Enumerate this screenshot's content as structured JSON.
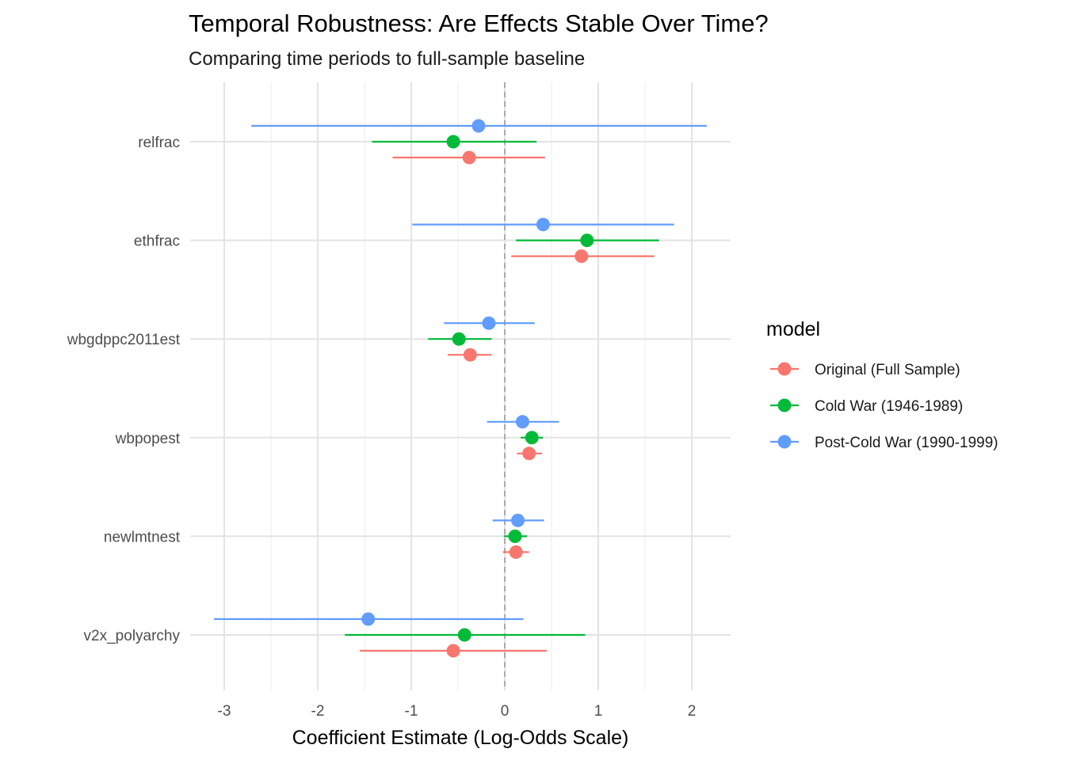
{
  "chart_data": {
    "type": "scatter",
    "title": "Temporal Robustness: Are Effects Stable Over Time?",
    "subtitle": "Comparing time periods to full-sample baseline",
    "xlabel": "Coefficient Estimate (Log-Odds Scale)",
    "ylabel": "",
    "xlim": [
      -3.3,
      2.4
    ],
    "xticks": [
      -3,
      -2,
      -1,
      0,
      1,
      2
    ],
    "reference_line": 0,
    "grid": true,
    "legend_title": "model",
    "legend_position": "right",
    "categories": [
      "relfrac",
      "ethfrac",
      "wbgdppc2011est",
      "wbpopest",
      "newlmtnest",
      "v2x_polyarchy"
    ],
    "series": [
      {
        "name": "Original (Full Sample)",
        "color": "#F8766D",
        "estimates": [
          -0.38,
          0.82,
          -0.37,
          0.26,
          0.12,
          -0.55
        ],
        "lower": [
          -1.2,
          0.07,
          -0.61,
          0.13,
          -0.02,
          -1.55
        ],
        "upper": [
          0.43,
          1.6,
          -0.14,
          0.4,
          0.26,
          0.45
        ]
      },
      {
        "name": "Cold War (1946-1989)",
        "color": "#00BA38",
        "estimates": [
          -0.55,
          0.88,
          -0.49,
          0.29,
          0.11,
          -0.43
        ],
        "lower": [
          -1.42,
          0.12,
          -0.82,
          0.17,
          -0.01,
          -1.71
        ],
        "upper": [
          0.34,
          1.65,
          -0.14,
          0.41,
          0.24,
          0.86
        ]
      },
      {
        "name": "Post-Cold War (1990-1999)",
        "color": "#619CFF",
        "estimates": [
          -0.28,
          0.41,
          -0.17,
          0.19,
          0.14,
          -1.46
        ],
        "lower": [
          -2.71,
          -0.99,
          -0.65,
          -0.19,
          -0.13,
          -3.11
        ],
        "upper": [
          2.16,
          1.81,
          0.32,
          0.58,
          0.42,
          0.2
        ]
      }
    ]
  }
}
